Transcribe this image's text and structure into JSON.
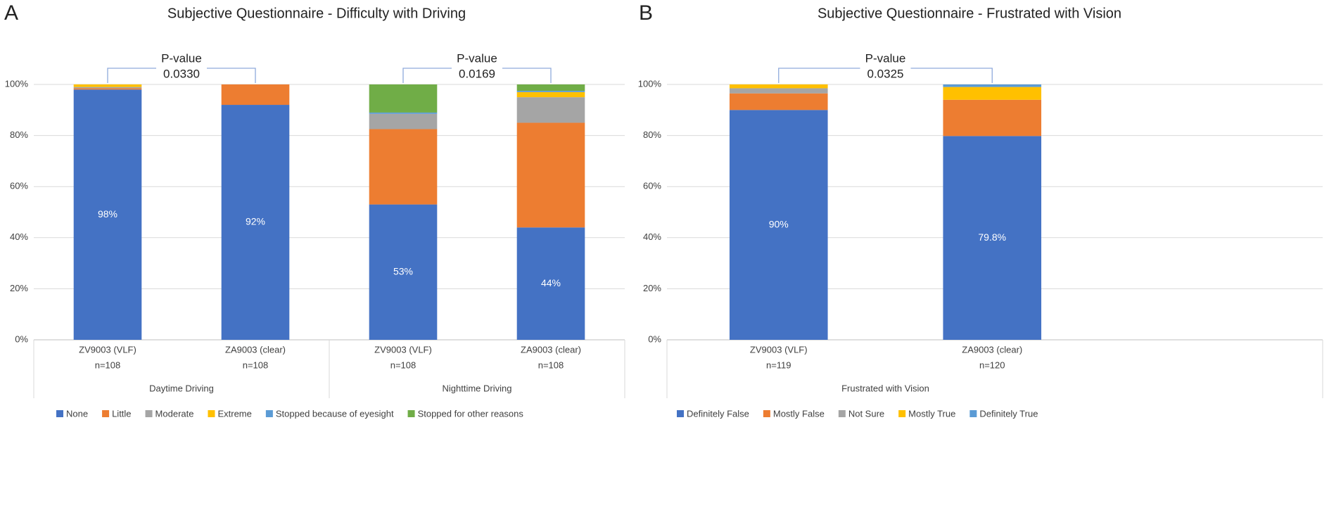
{
  "chart_data": [
    {
      "type": "stacked_bar",
      "panel": "A",
      "title": "Subjective Questionnaire - Difficulty with Driving",
      "categories": [
        "ZV9003 (VLF)",
        "ZA9003 (clear)",
        "ZV9003 (VLF)",
        "ZA9003 (clear)"
      ],
      "n_labels": [
        "n=108",
        "n=108",
        "n=108",
        "n=108"
      ],
      "groups": [
        {
          "name": "Daytime Driving",
          "count": 2,
          "p_value": "0.0330"
        },
        {
          "name": "Nighttime Driving",
          "count": 2,
          "p_value": "0.0169"
        }
      ],
      "p_label": "P-value",
      "series": [
        {
          "name": "None",
          "color": "#4472c4",
          "values": [
            98,
            92,
            53,
            44
          ],
          "value_labels": [
            "98%",
            "92%",
            "53%",
            "44%"
          ]
        },
        {
          "name": "Little",
          "color": "#ed7d31",
          "values": [
            0.5,
            8,
            29.5,
            41
          ]
        },
        {
          "name": "Moderate",
          "color": "#a5a5a5",
          "values": [
            0.5,
            0,
            6,
            10
          ]
        },
        {
          "name": "Extreme",
          "color": "#ffc000",
          "values": [
            1,
            0,
            0,
            2
          ]
        },
        {
          "name": "Stopped because of eyesight",
          "color": "#5b9bd5",
          "values": [
            0,
            0,
            0.5,
            0.5
          ]
        },
        {
          "name": "Stopped for other reasons",
          "color": "#70ad47",
          "values": [
            0,
            0,
            11,
            2.5
          ]
        }
      ],
      "ylim": [
        0,
        100
      ],
      "yticks": [
        {
          "value": 0,
          "label": "0%"
        },
        {
          "value": 20,
          "label": "20%"
        },
        {
          "value": 40,
          "label": "40%"
        },
        {
          "value": 60,
          "label": "60%"
        },
        {
          "value": 80,
          "label": "80%"
        },
        {
          "value": 100,
          "label": "100%"
        }
      ],
      "grid": true,
      "legend": "bottom"
    },
    {
      "type": "stacked_bar",
      "panel": "B",
      "title": "Subjective Questionnaire - Frustrated with Vision",
      "categories": [
        "ZV9003 (VLF)",
        "ZA9003 (clear)"
      ],
      "n_labels": [
        "n=119",
        "n=120"
      ],
      "groups": [
        {
          "name": "Frustrated with Vision",
          "count": 2,
          "p_value": "0.0325"
        }
      ],
      "p_label": "P-value",
      "series": [
        {
          "name": "Definitely False",
          "color": "#4472c4",
          "values": [
            90,
            79.8
          ],
          "value_labels": [
            "90%",
            "79.8%"
          ]
        },
        {
          "name": "Mostly False",
          "color": "#ed7d31",
          "values": [
            6.5,
            14.2
          ]
        },
        {
          "name": "Not Sure",
          "color": "#a5a5a5",
          "values": [
            2,
            0
          ]
        },
        {
          "name": "Mostly True",
          "color": "#ffc000",
          "values": [
            1.5,
            5
          ]
        },
        {
          "name": "Definitely True",
          "color": "#5b9bd5",
          "values": [
            0,
            1
          ]
        }
      ],
      "ylim": [
        0,
        100
      ],
      "yticks": [
        {
          "value": 0,
          "label": "0%"
        },
        {
          "value": 20,
          "label": "20%"
        },
        {
          "value": 40,
          "label": "40%"
        },
        {
          "value": 60,
          "label": "60%"
        },
        {
          "value": 80,
          "label": "80%"
        },
        {
          "value": 100,
          "label": "100%"
        }
      ],
      "grid": true,
      "legend": "bottom"
    }
  ]
}
